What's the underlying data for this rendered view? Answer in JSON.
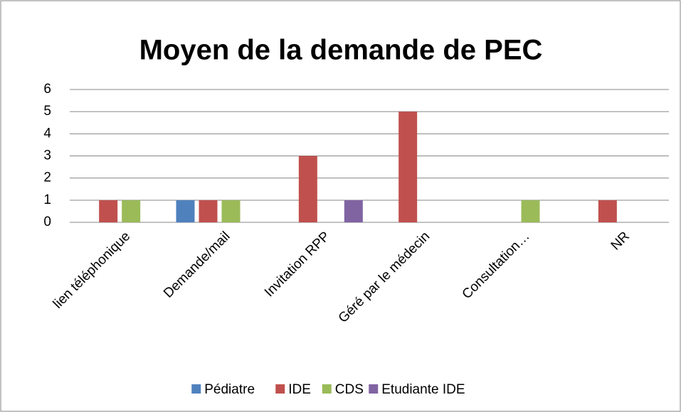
{
  "chart_data": {
    "type": "bar",
    "title": "Moyen de la demande de PEC",
    "categories": [
      "lien téléphonique",
      "Demande/mail",
      "Invitation RPP",
      "Géré par le médecin",
      "Consultation…",
      "NR"
    ],
    "series": [
      {
        "name": "Pédiatre",
        "color": "#4f81bd",
        "values": [
          0,
          1,
          0,
          0,
          0,
          0
        ]
      },
      {
        "name": "IDE",
        "color": "#c0504d",
        "values": [
          1,
          1,
          3,
          5,
          0,
          1
        ]
      },
      {
        "name": "CDS",
        "color": "#9bbb59",
        "values": [
          1,
          1,
          0,
          0,
          1,
          0
        ]
      },
      {
        "name": "Etudiante IDE",
        "color": "#8064a2",
        "values": [
          0,
          0,
          1,
          0,
          0,
          0
        ]
      }
    ],
    "ylim": [
      0,
      6
    ],
    "yticks": [
      0,
      1,
      2,
      3,
      4,
      5,
      6
    ],
    "grid": true,
    "legend": "bottom"
  }
}
